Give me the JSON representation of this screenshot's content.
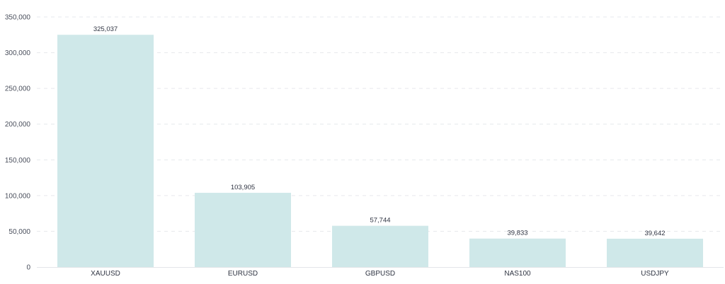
{
  "chart_data": {
    "type": "bar",
    "categories": [
      "XAUUSD",
      "EURUSD",
      "GBPUSD",
      "NAS100",
      "USDJPY"
    ],
    "values": [
      325037,
      103905,
      57744,
      39833,
      39642
    ],
    "data_labels": [
      "325,037",
      "103,905",
      "57,744",
      "39,833",
      "39,642"
    ],
    "y_ticks": [
      0,
      50000,
      100000,
      150000,
      200000,
      250000,
      300000,
      350000
    ],
    "y_tick_labels": [
      "0",
      "50,000",
      "100,000",
      "150,000",
      "200,000",
      "250,000",
      "300,000",
      "350,000"
    ],
    "ylim": [
      0,
      350000
    ],
    "grid": true,
    "legend": "none",
    "title": "",
    "xlabel": "",
    "ylabel": "",
    "colors": {
      "bar": "#cfe8e9",
      "grid": "#e6e8ec",
      "axis": "#e3e5e9",
      "text": "#2f3442"
    }
  }
}
